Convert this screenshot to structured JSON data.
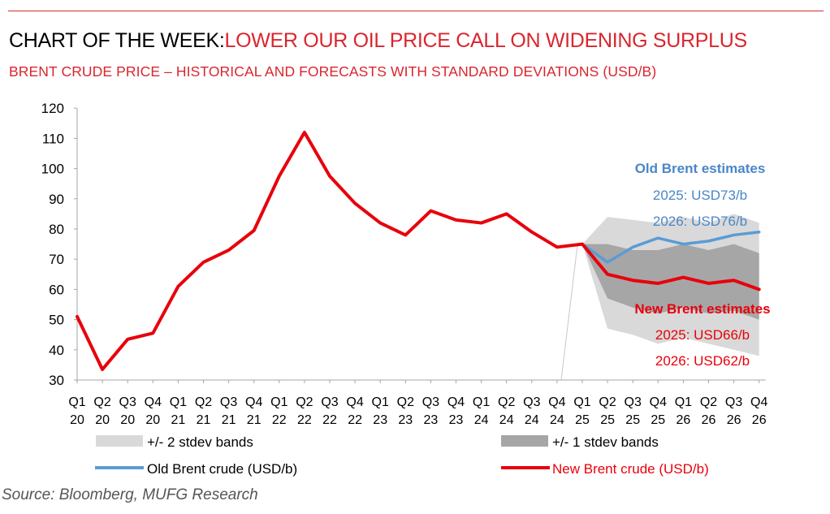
{
  "header": {
    "title_black": "CHART OF THE WEEK:",
    "title_red": "LOWER OUR OIL PRICE CALL ON WIDENING SURPLUS",
    "subtitle": "BRENT CRUDE PRICE – HISTORICAL AND FORECASTS WITH STANDARD DEVIATIONS (USD/B)"
  },
  "colors": {
    "red": "#e8000b",
    "blue": "#5b9bd5",
    "band2": "#d9d9d9",
    "band1": "#a6a6a6",
    "title_red": "#d9262e",
    "old_text": "#4a86c8",
    "new_text": "#e8000b"
  },
  "chart_data": {
    "type": "line",
    "y_ticks": [
      "30",
      "40",
      "50",
      "60",
      "70",
      "80",
      "90",
      "100",
      "110",
      "120"
    ],
    "ylim": [
      30,
      120
    ],
    "categories": [
      [
        "Q1",
        "20"
      ],
      [
        "Q2",
        "20"
      ],
      [
        "Q3",
        "20"
      ],
      [
        "Q4",
        "20"
      ],
      [
        "Q1",
        "21"
      ],
      [
        "Q2",
        "21"
      ],
      [
        "Q3",
        "21"
      ],
      [
        "Q4",
        "21"
      ],
      [
        "Q1",
        "22"
      ],
      [
        "Q2",
        "22"
      ],
      [
        "Q3",
        "22"
      ],
      [
        "Q4",
        "22"
      ],
      [
        "Q1",
        "23"
      ],
      [
        "Q2",
        "23"
      ],
      [
        "Q3",
        "23"
      ],
      [
        "Q4",
        "23"
      ],
      [
        "Q1",
        "24"
      ],
      [
        "Q2",
        "24"
      ],
      [
        "Q3",
        "24"
      ],
      [
        "Q4",
        "24"
      ],
      [
        "Q1",
        "25"
      ],
      [
        "Q2",
        "25"
      ],
      [
        "Q3",
        "25"
      ],
      [
        "Q4",
        "25"
      ],
      [
        "Q1",
        "26"
      ],
      [
        "Q2",
        "26"
      ],
      [
        "Q3",
        "26"
      ],
      [
        "Q4",
        "26"
      ]
    ],
    "series": [
      {
        "name": "New Brent crude (USD/b)",
        "values": [
          51,
          33.5,
          43.5,
          45.5,
          61,
          69,
          73,
          79.5,
          97.5,
          112,
          97.5,
          88.5,
          82,
          78,
          86,
          83,
          82,
          85,
          79,
          74,
          75,
          65,
          63,
          62,
          64,
          62,
          63,
          60
        ]
      },
      {
        "name": "Old Brent crude (USD/b)",
        "values": [
          null,
          null,
          null,
          null,
          null,
          null,
          null,
          null,
          null,
          null,
          null,
          null,
          null,
          null,
          null,
          null,
          null,
          null,
          null,
          null,
          75,
          69,
          74,
          77,
          75,
          76,
          78,
          79
        ]
      }
    ],
    "bands": [
      {
        "name": "+/- 2 stdev bands",
        "lower": [
          null,
          null,
          null,
          null,
          null,
          null,
          null,
          null,
          null,
          null,
          null,
          null,
          null,
          null,
          null,
          null,
          null,
          null,
          null,
          null,
          75,
          47,
          45,
          42,
          44,
          42,
          40,
          38
        ],
        "upper": [
          null,
          null,
          null,
          null,
          null,
          null,
          null,
          null,
          null,
          null,
          null,
          null,
          null,
          null,
          null,
          null,
          null,
          null,
          null,
          null,
          75,
          84,
          83,
          82,
          84,
          82,
          85,
          82
        ]
      },
      {
        "name": "+/- 1 stdev bands",
        "lower": [
          null,
          null,
          null,
          null,
          null,
          null,
          null,
          null,
          null,
          null,
          null,
          null,
          null,
          null,
          null,
          null,
          null,
          null,
          null,
          null,
          75,
          57,
          54,
          52,
          54,
          52,
          53,
          50
        ],
        "upper": [
          null,
          null,
          null,
          null,
          null,
          null,
          null,
          null,
          null,
          null,
          null,
          null,
          null,
          null,
          null,
          null,
          null,
          null,
          null,
          null,
          75,
          75,
          73,
          73,
          75,
          73,
          75,
          72
        ]
      }
    ],
    "legend": [
      {
        "label": "+/- 2 stdev bands",
        "kind": "band2"
      },
      {
        "label": "+/- 1 stdev bands",
        "kind": "band1"
      },
      {
        "label": "Old Brent crude (USD/b)",
        "kind": "old"
      },
      {
        "label": "New Brent crude (USD/b)",
        "kind": "new"
      }
    ],
    "annotations": {
      "old_title": "Old Brent estimates",
      "old_2025": "2025: USD73/b",
      "old_2026": "2026: USD76/b",
      "new_title": "New Brent estimates",
      "new_2025": "2025: USD66/b",
      "new_2026": "2026: USD62/b"
    }
  },
  "source": "Source: Bloomberg, MUFG Research"
}
